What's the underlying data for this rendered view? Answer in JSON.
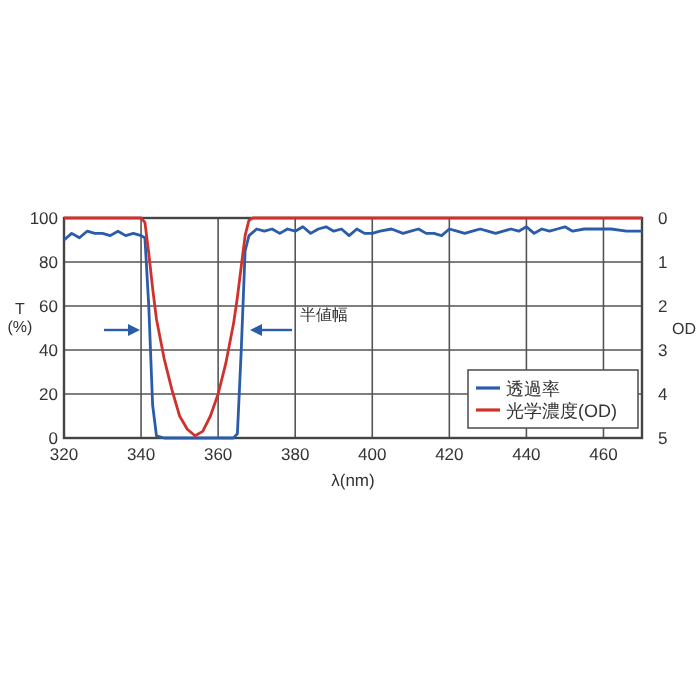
{
  "chart_data": {
    "type": "line",
    "xlabel": "λ(nm)",
    "ylabel": "T (%)",
    "y2label": "OD",
    "xlim": [
      320,
      470
    ],
    "xticks": [
      320,
      340,
      360,
      380,
      400,
      420,
      440,
      460
    ],
    "ylim": [
      0,
      100
    ],
    "yticks": [
      0,
      20,
      40,
      60,
      80,
      100
    ],
    "y2lim": [
      5,
      0
    ],
    "y2ticks": [
      0,
      1,
      2,
      3,
      4,
      5
    ],
    "grid": true,
    "legend": "bottom right",
    "annotations": [
      "半値幅"
    ],
    "series": [
      {
        "name": "透過率",
        "color": "#2a5caa",
        "x": [
          320,
          322,
          324,
          326,
          328,
          330,
          332,
          334,
          336,
          338,
          340,
          341,
          342,
          343,
          344,
          346,
          350,
          355,
          360,
          364,
          365,
          366,
          367,
          368,
          370,
          372,
          374,
          376,
          378,
          380,
          382,
          384,
          386,
          388,
          390,
          392,
          394,
          396,
          398,
          400,
          402,
          405,
          408,
          410,
          412,
          414,
          416,
          418,
          420,
          422,
          424,
          426,
          428,
          430,
          432,
          434,
          436,
          438,
          440,
          442,
          444,
          446,
          448,
          450,
          452,
          455,
          458,
          462,
          466,
          470
        ],
        "values": [
          90,
          93,
          91,
          94,
          93,
          93,
          92,
          94,
          92,
          93,
          92,
          91,
          60,
          15,
          1,
          0,
          0,
          0,
          0,
          0,
          2,
          40,
          85,
          92,
          95,
          94,
          95,
          93,
          95,
          94,
          96,
          93,
          95,
          96,
          94,
          95,
          92,
          95,
          93,
          93,
          94,
          95,
          93,
          94,
          95,
          93,
          93,
          92,
          95,
          94,
          93,
          94,
          95,
          94,
          93,
          94,
          95,
          94,
          96,
          93,
          95,
          94,
          95,
          96,
          94,
          95,
          95,
          95,
          94,
          94
        ]
      },
      {
        "name": "光学濃度(OD)",
        "color": "#d0312d",
        "axis": "y2",
        "x": [
          320,
          340,
          341,
          342,
          343,
          344,
          346,
          348,
          350,
          352,
          354,
          356,
          358,
          360,
          362,
          364,
          365,
          366,
          367,
          368,
          369,
          470
        ],
        "values": [
          0,
          0,
          0.1,
          0.8,
          1.6,
          2.3,
          3.2,
          3.9,
          4.5,
          4.8,
          4.95,
          4.85,
          4.5,
          4.0,
          3.3,
          2.4,
          1.8,
          1.1,
          0.4,
          0.05,
          0,
          0
        ]
      }
    ]
  }
}
